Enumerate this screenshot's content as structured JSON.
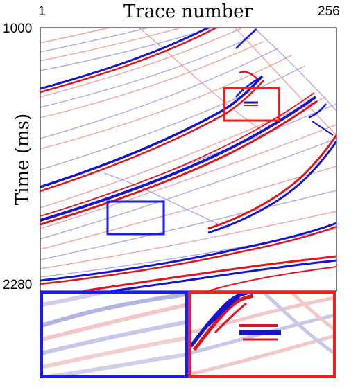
{
  "figure": {
    "title": "Trace number",
    "x_start": "1",
    "x_end": "256",
    "y_label": "Time (ms)",
    "y_start": "1000",
    "y_end": "2280"
  },
  "colors": {
    "positive": "#e0141e",
    "negative": "#1414d2",
    "box_blue": "#1a1aff",
    "box_red": "#ff1a1a"
  }
}
